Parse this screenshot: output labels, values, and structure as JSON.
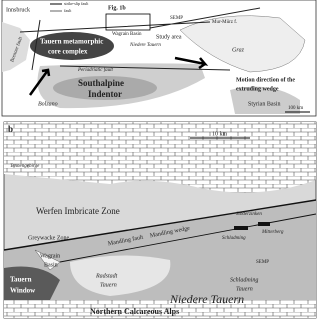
{
  "panel_a": {
    "legend": [
      "strike-slip fault",
      "fault"
    ],
    "labels": [
      "Fig. 1b",
      "SEMP",
      "Wagrain Basin",
      "Study area",
      "Innsbruck",
      "Tauern metamorphic",
      "core complex",
      "Niedere Tauern",
      "Mur-Mürz f.",
      "Graz",
      "Brenner fault",
      "Periadriatic fault",
      "Southalpine",
      "Indentor",
      "Bolzano",
      "Motion direction of the",
      "extruding wedge",
      "Styrian Basin",
      "100 km"
    ]
  },
  "panel_b": {
    "letter": "b",
    "labels": [
      "10 km",
      "Tennengebirge",
      "Werfen Imbricate Zone",
      "Greywacke Zone",
      "Wagrain",
      "Basin",
      "Mandling fault",
      "Mandling wedge",
      "Stoderzinken",
      "Mitterberg",
      "Schladming",
      "SEMP",
      "Schladming",
      "Tauern",
      "Radstadt",
      "Tauern",
      "Tauern",
      "Window",
      "Niedere Tauern",
      "Northern Calcareous Alps"
    ]
  }
}
